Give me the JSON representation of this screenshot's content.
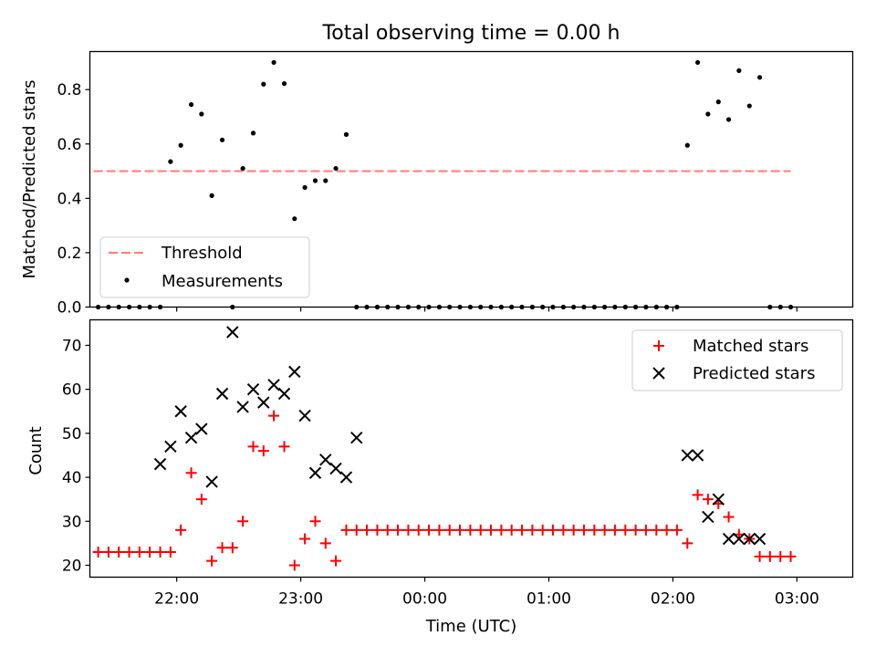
{
  "chart_data": [
    {
      "type": "scatter",
      "title": "Total observing time = 0.00 h",
      "xlabel": "",
      "ylabel": "Matched/Predicted stars",
      "xlim": [
        -2.7,
        3.45
      ],
      "ylim": [
        0.0,
        0.94
      ],
      "yticks": [
        0.0,
        0.2,
        0.4,
        0.6,
        0.8
      ],
      "ytick_labels": [
        "0.0",
        "0.2",
        "0.4",
        "0.6",
        "0.8"
      ],
      "xticks": [
        -2,
        -1,
        0,
        1,
        2,
        3
      ],
      "grid": false,
      "legend_position": "lower-left",
      "threshold": {
        "name": "Threshold",
        "color": "#ff7f7f",
        "y": 0.5,
        "x_range": [
          -2.67,
          2.95
        ]
      },
      "series": [
        {
          "name": "Measurements",
          "color": "#000000",
          "marker": "dot",
          "x": [
            -2.633,
            -2.55,
            -2.467,
            -2.383,
            -2.3,
            -2.217,
            -2.133,
            -2.05,
            -1.967,
            -1.883,
            -1.8,
            -1.717,
            -1.633,
            -1.55,
            -1.467,
            -1.383,
            -1.3,
            -1.217,
            -1.133,
            -1.05,
            -0.967,
            -0.883,
            -0.8,
            -0.717,
            -0.633,
            -0.55,
            -0.467,
            -0.383,
            -0.3,
            -0.217,
            -0.133,
            -0.05,
            0.033,
            0.117,
            0.2,
            0.283,
            0.367,
            0.45,
            0.533,
            0.617,
            0.7,
            0.783,
            0.867,
            0.95,
            1.033,
            1.117,
            1.2,
            1.283,
            1.367,
            1.45,
            1.533,
            1.617,
            1.7,
            1.783,
            1.867,
            1.95,
            2.033,
            2.117,
            2.2,
            2.283,
            2.367,
            2.45,
            2.533,
            2.617,
            2.7,
            2.783,
            2.867,
            2.95
          ],
          "y": [
            0,
            0,
            0,
            0,
            0,
            0,
            0,
            0.535,
            0.595,
            0.745,
            0.71,
            0.41,
            0.615,
            0,
            0.51,
            0.64,
            0.82,
            0.9,
            0.822,
            0.325,
            0.44,
            0.465,
            0.465,
            0.51,
            0.635,
            0,
            0,
            0,
            0,
            0,
            0,
            0,
            0,
            0,
            0,
            0,
            0,
            0,
            0,
            0,
            0,
            0,
            0,
            0,
            0,
            0,
            0,
            0,
            0,
            0,
            0,
            0,
            0,
            0,
            0,
            0,
            0,
            0.595,
            0.9,
            0.71,
            0.755,
            0.69,
            0.87,
            0.74,
            0.845,
            0,
            0,
            0
          ]
        }
      ]
    },
    {
      "type": "scatter",
      "title": "",
      "xlabel": "Time (UTC)",
      "ylabel": "Count",
      "xlim": [
        -2.7,
        3.45
      ],
      "ylim": [
        17.3,
        75.8
      ],
      "yticks": [
        20,
        30,
        40,
        50,
        60,
        70
      ],
      "ytick_labels": [
        "20",
        "30",
        "40",
        "50",
        "60",
        "70"
      ],
      "xticks": [
        -2,
        -1,
        0,
        1,
        2,
        3
      ],
      "xtick_labels": [
        "22:00",
        "23:00",
        "00:00",
        "01:00",
        "02:00",
        "03:00"
      ],
      "grid": false,
      "legend_position": "top-right",
      "series": [
        {
          "name": "Matched stars",
          "color": "#ff0000",
          "marker": "plus",
          "x": [
            -2.633,
            -2.55,
            -2.467,
            -2.383,
            -2.3,
            -2.217,
            -2.133,
            -2.05,
            -1.967,
            -1.883,
            -1.8,
            -1.717,
            -1.633,
            -1.55,
            -1.467,
            -1.383,
            -1.3,
            -1.217,
            -1.133,
            -1.05,
            -0.967,
            -0.883,
            -0.8,
            -0.717,
            -0.633,
            -0.55,
            -0.467,
            -0.383,
            -0.3,
            -0.217,
            -0.133,
            -0.05,
            0.033,
            0.117,
            0.2,
            0.283,
            0.367,
            0.45,
            0.533,
            0.617,
            0.7,
            0.783,
            0.867,
            0.95,
            1.033,
            1.117,
            1.2,
            1.283,
            1.367,
            1.45,
            1.533,
            1.617,
            1.7,
            1.783,
            1.867,
            1.95,
            2.033,
            2.117,
            2.2,
            2.283,
            2.367,
            2.45,
            2.533,
            2.617,
            2.7,
            2.783,
            2.867,
            2.95
          ],
          "y": [
            23,
            23,
            23,
            23,
            23,
            23,
            23,
            23,
            28,
            41,
            35,
            21,
            24,
            24,
            30,
            47,
            46,
            54,
            47,
            20,
            26,
            30,
            25,
            21,
            28,
            28,
            28,
            28,
            28,
            28,
            28,
            28,
            28,
            28,
            28,
            28,
            28,
            28,
            28,
            28,
            28,
            28,
            28,
            28,
            28,
            28,
            28,
            28,
            28,
            28,
            28,
            28,
            28,
            28,
            28,
            28,
            28,
            25,
            36,
            35,
            34,
            31,
            27,
            26,
            22,
            22,
            22,
            22
          ]
        },
        {
          "name": "Predicted stars",
          "color": "#000000",
          "marker": "x",
          "x": [
            -2.133,
            -2.05,
            -1.967,
            -1.883,
            -1.8,
            -1.717,
            -1.633,
            -1.55,
            -1.467,
            -1.383,
            -1.3,
            -1.217,
            -1.133,
            -1.05,
            -0.967,
            -0.883,
            -0.8,
            -0.717,
            -0.633,
            -0.55,
            2.117,
            2.2,
            2.283,
            2.367,
            2.45,
            2.533,
            2.617,
            2.7
          ],
          "y": [
            43,
            47,
            55,
            49,
            51,
            39,
            59,
            73,
            56,
            60,
            57,
            61,
            59,
            64,
            54,
            41,
            44,
            42,
            40,
            49,
            45,
            45,
            31,
            35,
            26,
            26,
            26,
            26
          ]
        }
      ]
    }
  ]
}
